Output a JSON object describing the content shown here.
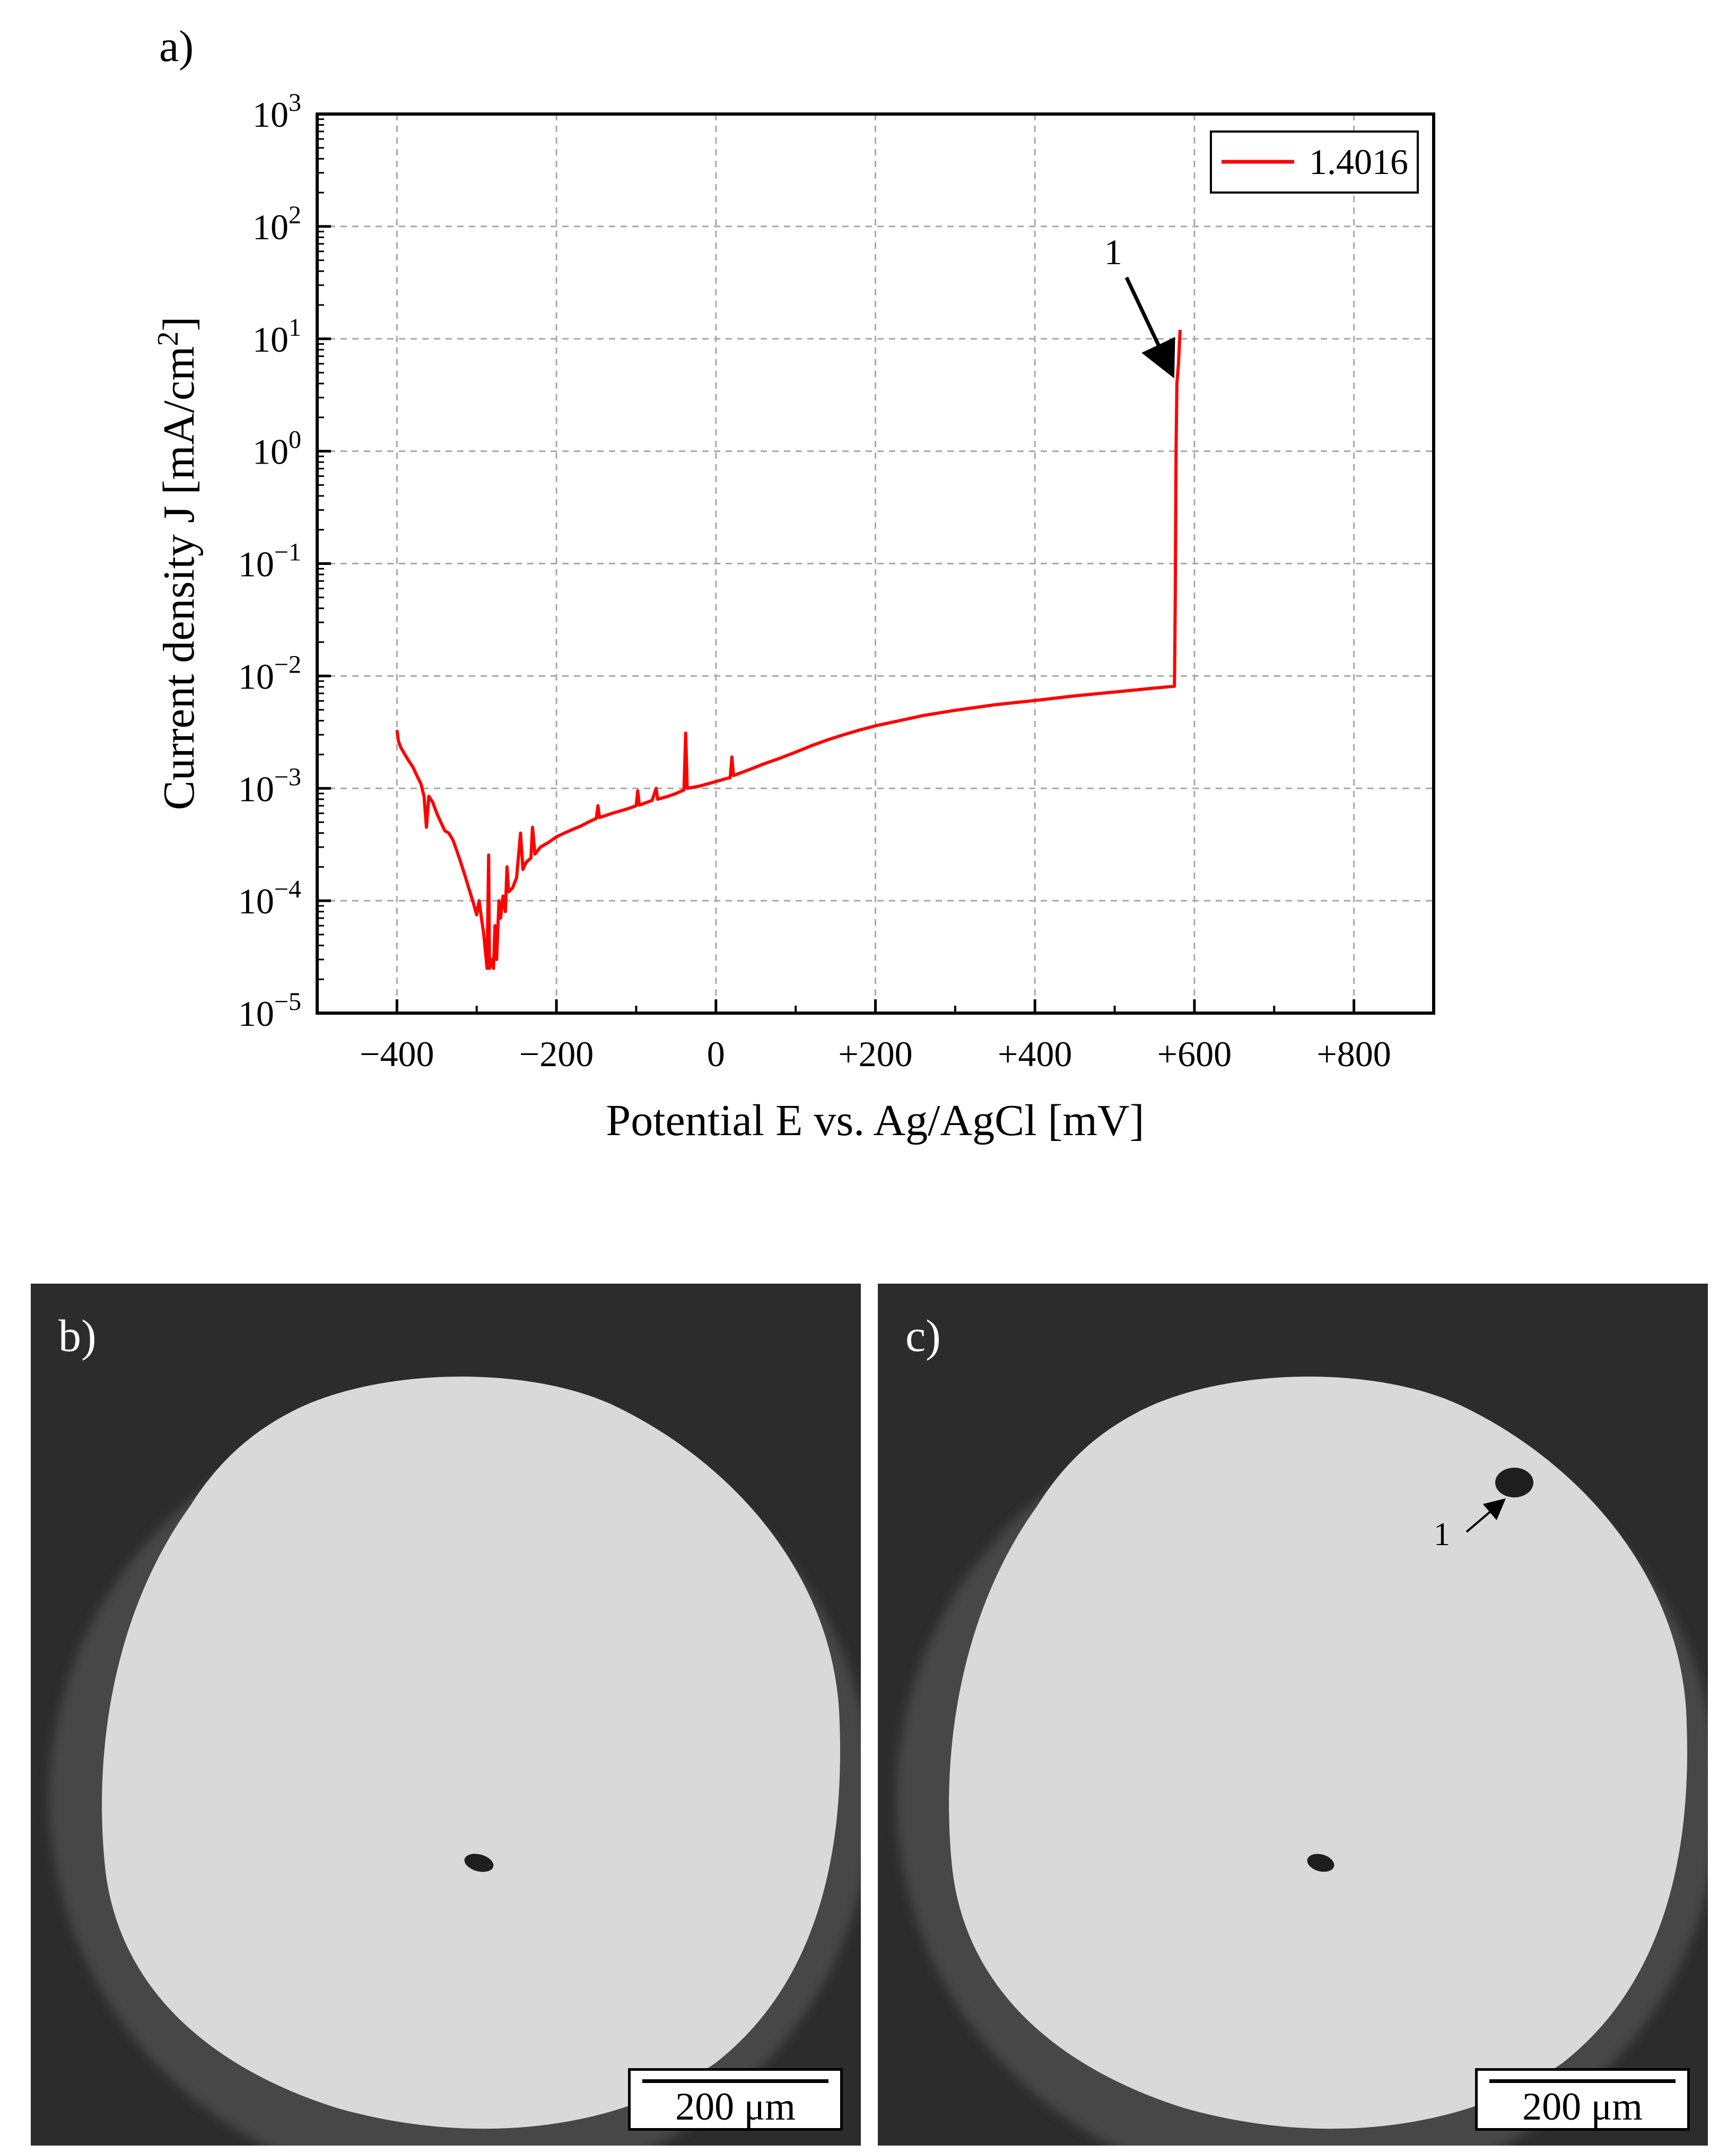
{
  "chart_data": {
    "type": "line",
    "panel_label": "a)",
    "xlabel": "Potential E vs. Ag/AgCl [mV]",
    "ylabel_prefix": "Current density J [mA/cm",
    "ylabel_sup": "2",
    "ylabel_suffix": "]",
    "xlim": [
      -500,
      900
    ],
    "ylim_log10": [
      -5,
      3
    ],
    "x_ticks": [
      -400,
      -200,
      0,
      200,
      400,
      600,
      800
    ],
    "x_tick_labels": [
      "−400",
      "−200",
      "0",
      "+200",
      "+400",
      "+600",
      "+800"
    ],
    "y_ticks": [
      {
        "base": "10",
        "exp": "3"
      },
      {
        "base": "10",
        "exp": "2"
      },
      {
        "base": "10",
        "exp": "1"
      },
      {
        "base": "10",
        "exp": "0"
      },
      {
        "base": "10",
        "exp": "−1"
      },
      {
        "base": "10",
        "exp": "−2"
      },
      {
        "base": "10",
        "exp": "−3"
      },
      {
        "base": "10",
        "exp": "−4"
      },
      {
        "base": "10",
        "exp": "−5"
      }
    ],
    "grid": true,
    "legend_position": "top-right",
    "series": [
      {
        "name": "1.4016",
        "color": "#ff0000",
        "points": [
          [
            -400,
            0.0033
          ],
          [
            -398,
            0.0026
          ],
          [
            -395,
            0.0023
          ],
          [
            -390,
            0.002
          ],
          [
            -385,
            0.00175
          ],
          [
            -380,
            0.00155
          ],
          [
            -375,
            0.0013
          ],
          [
            -370,
            0.0011
          ],
          [
            -366,
            0.00085
          ],
          [
            -363,
            0.00045
          ],
          [
            -360,
            0.00085
          ],
          [
            -355,
            0.00075
          ],
          [
            -350,
            0.0006
          ],
          [
            -345,
            0.0005
          ],
          [
            -340,
            0.00042
          ],
          [
            -335,
            0.0004
          ],
          [
            -330,
            0.00035
          ],
          [
            -325,
            0.00028
          ],
          [
            -320,
            0.00022
          ],
          [
            -315,
            0.00017
          ],
          [
            -310,
            0.00013
          ],
          [
            -305,
            0.0001
          ],
          [
            -300,
            7.5e-05
          ],
          [
            -297,
            0.0001
          ],
          [
            -294,
            7e-05
          ],
          [
            -291,
            5e-05
          ],
          [
            -289,
            3.5e-05
          ],
          [
            -287,
            2.5e-05
          ],
          [
            -285,
            0.000255
          ],
          [
            -284,
            2.5e-05
          ],
          [
            -281,
            3e-05
          ],
          [
            -279,
            2.5e-05
          ],
          [
            -277,
            6e-05
          ],
          [
            -275,
            3e-05
          ],
          [
            -272,
            0.0001
          ],
          [
            -270,
            7e-05
          ],
          [
            -267,
            0.00011
          ],
          [
            -264,
            8e-05
          ],
          [
            -262,
            0.0002
          ],
          [
            -260,
            0.00012
          ],
          [
            -255,
            0.00013
          ],
          [
            -250,
            0.00016
          ],
          [
            -245,
            0.0004
          ],
          [
            -242,
            0.00019
          ],
          [
            -238,
            0.00022
          ],
          [
            -232,
            0.00024
          ],
          [
            -230,
            0.00045
          ],
          [
            -227,
            0.00026
          ],
          [
            -220,
            0.0003
          ],
          [
            -210,
            0.00033
          ],
          [
            -200,
            0.00037
          ],
          [
            -190,
            0.0004
          ],
          [
            -180,
            0.00043
          ],
          [
            -170,
            0.00046
          ],
          [
            -160,
            0.0005
          ],
          [
            -150,
            0.00054
          ],
          [
            -148,
            0.0007
          ],
          [
            -146,
            0.00055
          ],
          [
            -130,
            0.0006
          ],
          [
            -110,
            0.00066
          ],
          [
            -100,
            0.0007
          ],
          [
            -98,
            0.00095
          ],
          [
            -96,
            0.00071
          ],
          [
            -80,
            0.00078
          ],
          [
            -75,
            0.001
          ],
          [
            -73,
            0.0008
          ],
          [
            -60,
            0.00085
          ],
          [
            -50,
            0.0009
          ],
          [
            -40,
            0.00097
          ],
          [
            -38,
            0.0031
          ],
          [
            -36,
            0.001
          ],
          [
            -20,
            0.00105
          ],
          [
            0,
            0.00115
          ],
          [
            18,
            0.00125
          ],
          [
            20,
            0.0019
          ],
          [
            22,
            0.0013
          ],
          [
            40,
            0.00145
          ],
          [
            60,
            0.00165
          ],
          [
            80,
            0.00185
          ],
          [
            100,
            0.0021
          ],
          [
            120,
            0.0024
          ],
          [
            140,
            0.0027
          ],
          [
            160,
            0.003
          ],
          [
            180,
            0.0033
          ],
          [
            200,
            0.0036
          ],
          [
            230,
            0.004
          ],
          [
            260,
            0.00445
          ],
          [
            300,
            0.00495
          ],
          [
            350,
            0.00555
          ],
          [
            400,
            0.00605
          ],
          [
            450,
            0.00665
          ],
          [
            500,
            0.0072
          ],
          [
            550,
            0.0078
          ],
          [
            575,
            0.0081
          ],
          [
            576,
            0.05
          ],
          [
            577,
            1.0
          ],
          [
            578,
            4.0
          ],
          [
            580,
            6.0
          ],
          [
            582,
            12.0
          ]
        ]
      }
    ],
    "annotation": {
      "text": "1",
      "x": 578,
      "y": 4.0
    }
  },
  "micrographs": {
    "panel_b": {
      "label": "b)",
      "scale_text": "200 μm"
    },
    "panel_c": {
      "label": "c)",
      "scale_text": "200 μm",
      "pit_label": "1"
    }
  }
}
